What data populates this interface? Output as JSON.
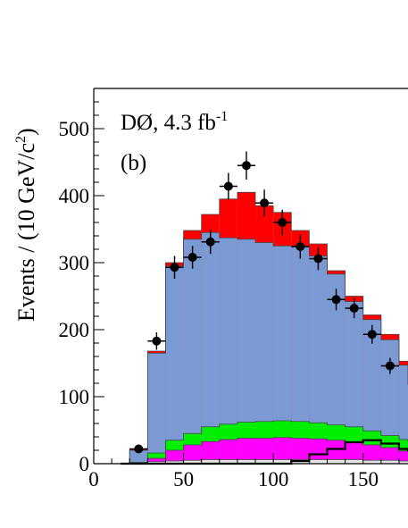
{
  "chart_data": {
    "type": "bar",
    "title": "DØ, 4.3 fb",
    "title_superscript": "-1",
    "panel_label": "(b)",
    "ylabel": "Events / (10 GeV/c",
    "ylabel_superscript": "2",
    "ylabel_close": ")",
    "xlabel": "",
    "xlim": [
      0,
      175
    ],
    "ylim": [
      0,
      560
    ],
    "x_ticks": [
      0,
      50,
      100,
      150
    ],
    "x_tick_labels": [
      "0",
      "50",
      "100",
      "150"
    ],
    "y_ticks": [
      0,
      100,
      200,
      300,
      400,
      500
    ],
    "y_tick_labels": [
      "0",
      "100",
      "200",
      "300",
      "400",
      "500"
    ],
    "bin_edges": [
      20,
      30,
      40,
      50,
      60,
      70,
      80,
      90,
      100,
      110,
      120,
      130,
      140,
      150,
      160,
      170,
      175
    ],
    "grid": false,
    "legend": "none",
    "series": [
      {
        "values": [
          0,
          3,
          4,
          5,
          6,
          6,
          6,
          6,
          6,
          6,
          6,
          6,
          6,
          5,
          5,
          4,
          4
        ],
        "color": "#e6e6e6"
      },
      {
        "values": [
          1,
          8,
          20,
          28,
          33,
          36,
          38,
          38,
          39,
          38,
          37,
          35,
          32,
          28,
          24,
          19,
          18
        ],
        "color": "#ff00ff"
      },
      {
        "values": [
          2,
          16,
          35,
          45,
          55,
          59,
          62,
          63,
          64,
          63,
          61,
          58,
          55,
          49,
          42,
          36,
          33
        ],
        "color": "#00ee00"
      },
      {
        "values": [
          20,
          165,
          295,
          335,
          345,
          337,
          335,
          330,
          325,
          325,
          310,
          283,
          242,
          215,
          185,
          147,
          118
        ],
        "color": "#7b9ad3"
      },
      {
        "values": [
          22,
          168,
          300,
          348,
          372,
          395,
          405,
          385,
          375,
          348,
          328,
          288,
          250,
          222,
          193,
          153,
          122
        ],
        "color": "#ff0000"
      }
    ],
    "overlay_line": {
      "values": [
        0,
        0,
        0,
        0,
        0,
        0,
        0,
        0,
        0,
        4,
        14,
        22,
        32,
        35,
        30,
        22,
        18
      ],
      "color": "#000000"
    },
    "points": {
      "x": [
        25,
        35,
        45,
        55,
        65,
        75,
        85,
        95,
        105,
        115,
        125,
        135,
        145,
        155,
        165
      ],
      "y": [
        22,
        183,
        293,
        308,
        331,
        414,
        445,
        389,
        360,
        324,
        306,
        245,
        232,
        193,
        146
      ],
      "yerr": [
        5,
        13,
        17,
        17,
        18,
        20,
        21,
        20,
        19,
        18,
        17,
        16,
        15,
        14,
        12
      ],
      "xerr": 5
    }
  }
}
